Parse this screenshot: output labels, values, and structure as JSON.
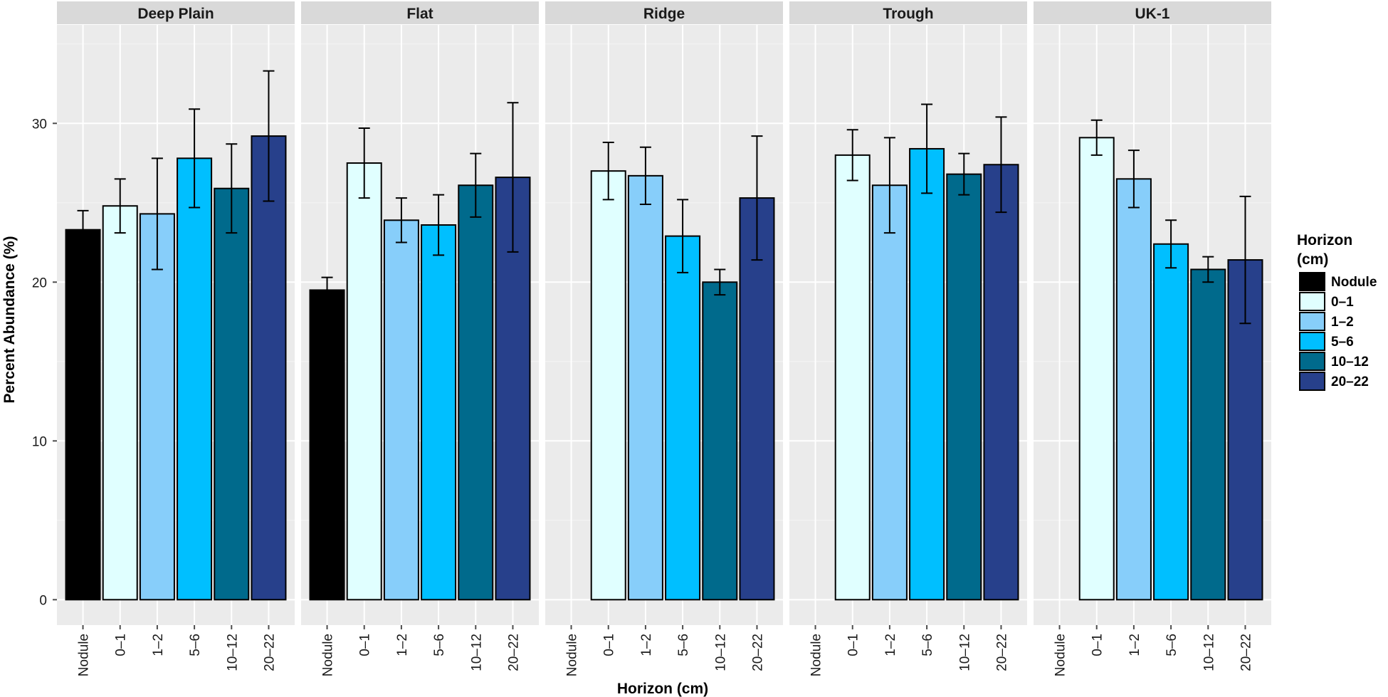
{
  "chart_data": {
    "type": "bar",
    "facet_variable": "Site",
    "panels": [
      {
        "name": "Deep Plain",
        "values": [
          23.3,
          24.8,
          24.3,
          27.8,
          25.9,
          29.2
        ],
        "errors": [
          1.2,
          1.7,
          3.5,
          3.1,
          2.8,
          4.1
        ]
      },
      {
        "name": "Flat",
        "values": [
          19.5,
          27.5,
          23.9,
          23.6,
          26.1,
          26.6
        ],
        "errors": [
          0.8,
          2.2,
          1.4,
          1.9,
          2.0,
          4.7
        ]
      },
      {
        "name": "Ridge",
        "values": [
          null,
          27.0,
          26.7,
          22.9,
          20.0,
          25.3
        ],
        "errors": [
          null,
          1.8,
          1.8,
          2.3,
          0.8,
          3.9
        ]
      },
      {
        "name": "Trough",
        "values": [
          null,
          28.0,
          26.1,
          28.4,
          26.8,
          27.4
        ],
        "errors": [
          null,
          1.6,
          3.0,
          2.8,
          1.3,
          3.0
        ]
      },
      {
        "name": "UK-1",
        "values": [
          null,
          29.1,
          26.5,
          22.4,
          20.8,
          21.4
        ],
        "errors": [
          null,
          1.1,
          1.8,
          1.5,
          0.8,
          4.0
        ]
      }
    ],
    "categories": [
      "Nodule",
      "0–1",
      "1–2",
      "5–6",
      "10–12",
      "20–22"
    ],
    "colors": [
      "#000000",
      "#e0ffff",
      "#87cefa",
      "#00bfff",
      "#006a8c",
      "#27408b"
    ],
    "ylabel": "Percent Abundance (%)",
    "xlabel": "Horizon (cm)",
    "yticks": [
      0,
      10,
      20,
      30
    ],
    "ylim": [
      -1.6,
      36.2
    ],
    "legend": {
      "title_line1": "Horizon",
      "title_line2": "(cm)",
      "entries": [
        "Nodule",
        "0–1",
        "1–2",
        "5–6",
        "10–12",
        "20–22"
      ],
      "placement": "right"
    }
  }
}
